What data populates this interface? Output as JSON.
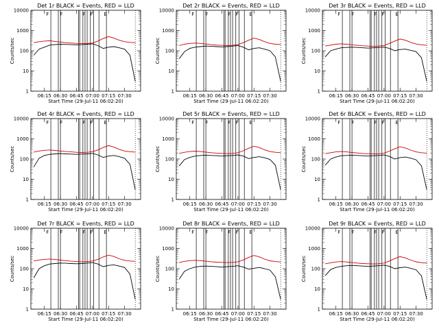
{
  "figure": {
    "xlabel": "Start Time (29-Jul-11 06:02:20)",
    "ylabel": "Counts/sec"
  },
  "chart_data": {
    "type": "line",
    "xlabel": "Start Time (29-Jul-11 06:02:20)",
    "ylabel": "Counts/sec",
    "yscale": "log",
    "ylim": [
      1,
      10000
    ],
    "xlim": [
      "06:02:20",
      "07:45:00"
    ],
    "x_tick_labels": [
      "06:15",
      "06:30",
      "06:45",
      "07:00",
      "07:15",
      "07:30"
    ],
    "y_tick_labels": [
      "1",
      "10",
      "100",
      "1000",
      "10000"
    ],
    "colors": {
      "events": "#000000",
      "lld": "#cc0000"
    },
    "x_minutes_from_0600": [
      5,
      10,
      15,
      20,
      25,
      30,
      35,
      40,
      45,
      50,
      55,
      60,
      65,
      70,
      75,
      80,
      85,
      90,
      95,
      100
    ],
    "panels": [
      {
        "title": "Det 1r BLACK = Events, RED = LLD",
        "series": [
          {
            "name": "Events",
            "values": [
              60,
              120,
              150,
              190,
              200,
              210,
              205,
              200,
              195,
              200,
              210,
              220,
              180,
              130,
              150,
              160,
              140,
              120,
              60,
              3
            ]
          },
          {
            "name": "LLD",
            "values": [
              250,
              280,
              300,
              310,
              290,
              270,
              250,
              240,
              230,
              225,
              230,
              240,
              300,
              400,
              500,
              420,
              330,
              280,
              260,
              250
            ]
          }
        ],
        "flags": [
          "F",
          "F",
          "F",
          "F",
          "E"
        ]
      },
      {
        "title": "Det 2r BLACK = Events, RED = LLD",
        "series": [
          {
            "name": "Events",
            "values": [
              40,
              90,
              130,
              150,
              160,
              170,
              165,
              160,
              155,
              160,
              170,
              180,
              150,
              110,
              130,
              140,
              120,
              100,
              50,
              3
            ]
          },
          {
            "name": "LLD",
            "values": [
              180,
              210,
              230,
              240,
              230,
              215,
              200,
              190,
              185,
              180,
              185,
              200,
              250,
              330,
              420,
              360,
              280,
              230,
              210,
              200
            ]
          }
        ],
        "flags": [
          "F",
          "F",
          "F",
          "F",
          "E"
        ]
      },
      {
        "title": "Det 3r BLACK = Events, RED = LLD",
        "series": [
          {
            "name": "Events",
            "values": [
              50,
              100,
              120,
              140,
              145,
              150,
              145,
              140,
              135,
              140,
              145,
              150,
              130,
              100,
              115,
              120,
              105,
              90,
              45,
              3
            ]
          },
          {
            "name": "LLD",
            "values": [
              170,
              190,
              210,
              220,
              210,
              195,
              185,
              175,
              170,
              165,
              170,
              180,
              230,
              300,
              380,
              330,
              260,
              215,
              195,
              185
            ]
          }
        ],
        "flags": [
          "F",
          "F",
          "F",
          "F",
          "E"
        ]
      },
      {
        "title": "Det 4r BLACK = Events, RED = LLD",
        "series": [
          {
            "name": "Events",
            "values": [
              40,
              110,
              150,
              170,
              180,
              185,
              180,
              175,
              170,
              175,
              180,
              190,
              160,
              120,
              140,
              150,
              130,
              110,
              55,
              3
            ]
          },
          {
            "name": "LLD",
            "values": [
              220,
              250,
              270,
              280,
              265,
              250,
              235,
              225,
              215,
              210,
              215,
              230,
              280,
              370,
              460,
              390,
              300,
              250,
              230,
              220
            ]
          }
        ],
        "flags": [
          "F",
          "F",
          "F",
          "F",
          "E"
        ]
      },
      {
        "title": "Det 5r BLACK = Events, RED = LLD",
        "series": [
          {
            "name": "Events",
            "values": [
              45,
              95,
              120,
              140,
              150,
              155,
              150,
              145,
              140,
              145,
              150,
              160,
              140,
              105,
              120,
              130,
              115,
              95,
              50,
              3
            ]
          },
          {
            "name": "LLD",
            "values": [
              190,
              215,
              235,
              245,
              235,
              220,
              205,
              195,
              190,
              185,
              190,
              205,
              255,
              340,
              430,
              370,
              285,
              235,
              215,
              205
            ]
          }
        ],
        "flags": [
          "F",
          "F",
          "F",
          "F",
          "E"
        ]
      },
      {
        "title": "Det 6r BLACK = Events, RED = LLD",
        "series": [
          {
            "name": "Events",
            "values": [
              50,
              100,
              125,
              145,
              150,
              155,
              150,
              145,
              140,
              145,
              150,
              160,
              135,
              100,
              118,
              125,
              110,
              92,
              46,
              3
            ]
          },
          {
            "name": "LLD",
            "values": [
              185,
              205,
              225,
              235,
              225,
              210,
              198,
              188,
              182,
              178,
              182,
              195,
              245,
              320,
              405,
              350,
              275,
              225,
              205,
              195
            ]
          }
        ],
        "flags": [
          "F",
          "F",
          "F",
          "F",
          "E"
        ]
      },
      {
        "title": "Det 7r BLACK = Events, RED = LLD",
        "series": [
          {
            "name": "Events",
            "values": [
              35,
              100,
              140,
              170,
              180,
              190,
              185,
              180,
              175,
              180,
              190,
              200,
              170,
              125,
              145,
              155,
              135,
              115,
              55,
              3
            ]
          },
          {
            "name": "LLD",
            "values": [
              240,
              270,
              290,
              300,
              285,
              265,
              250,
              235,
              225,
              220,
              225,
              240,
              290,
              380,
              470,
              400,
              310,
              260,
              240,
              230
            ]
          }
        ],
        "flags": [
          "F",
          "F",
          "F",
          "F",
          "E"
        ]
      },
      {
        "title": "Det 8r BLACK = Events, RED = LLD",
        "series": [
          {
            "name": "Events",
            "values": [
              30,
              75,
              100,
              120,
              130,
              135,
              130,
              125,
              120,
              125,
              130,
              140,
              120,
              95,
              105,
              115,
              100,
              85,
              40,
              3
            ]
          },
          {
            "name": "LLD",
            "values": [
              200,
              230,
              250,
              260,
              250,
              235,
              220,
              210,
              205,
              200,
              205,
              220,
              270,
              360,
              450,
              385,
              295,
              245,
              225,
              215
            ]
          }
        ],
        "flags": [
          "F",
          "F",
          "F",
          "F",
          "E"
        ]
      },
      {
        "title": "Det 9r BLACK = Events, RED = LLD",
        "series": [
          {
            "name": "Events",
            "values": [
              45,
              90,
              115,
              130,
              140,
              145,
              140,
              135,
              130,
              135,
              140,
              150,
              130,
              100,
              112,
              120,
              105,
              88,
              44,
              3
            ]
          },
          {
            "name": "LLD",
            "values": [
              175,
              195,
              215,
              225,
              215,
              200,
              190,
              180,
              175,
              172,
              176,
              190,
              240,
              315,
              395,
              340,
              265,
              218,
              198,
              190
            ]
          }
        ],
        "flags": [
          "F",
          "F",
          "F",
          "F",
          "E"
        ]
      }
    ]
  }
}
